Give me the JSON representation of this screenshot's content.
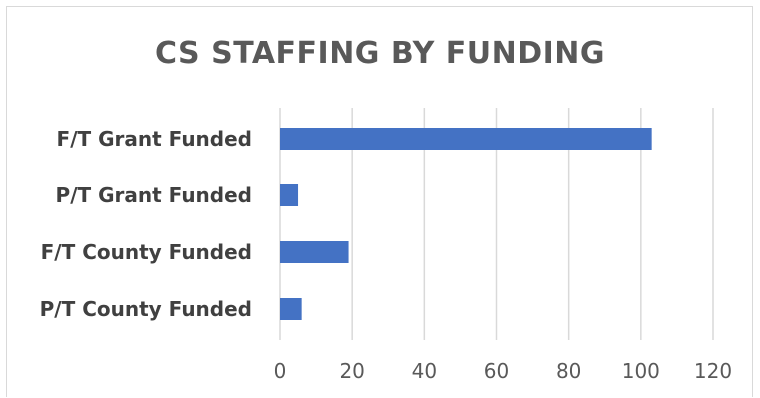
{
  "chart_data": {
    "type": "bar",
    "orientation": "horizontal",
    "title": "CS STAFFING BY FUNDING",
    "categories": [
      "F/T Grant Funded",
      "P/T Grant Funded",
      "F/T County Funded",
      "P/T County Funded"
    ],
    "values": [
      103,
      5,
      19,
      6
    ],
    "xlim": [
      0,
      120
    ],
    "x_ticks": [
      "0",
      "20",
      "40",
      "60",
      "80",
      "100",
      "120"
    ],
    "grid": true,
    "legend": "none",
    "bar_color": "#4472c4",
    "grid_color": "#d9d9d9"
  }
}
